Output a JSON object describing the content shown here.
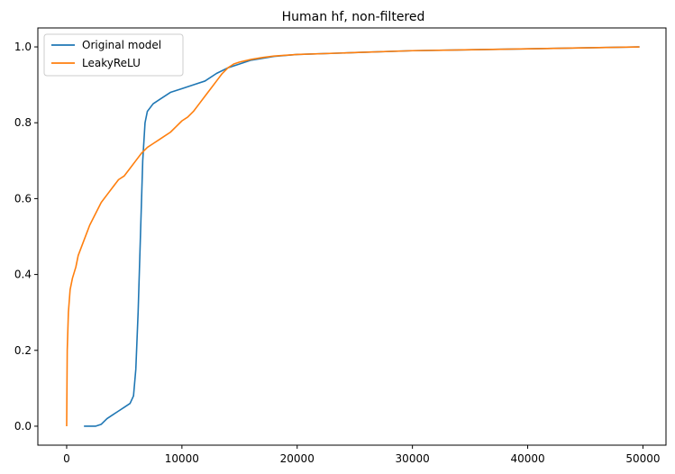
{
  "chart_data": {
    "type": "line",
    "title": "Human hf, non-filtered",
    "xlabel": "",
    "ylabel": "",
    "xlim": [
      -2500,
      52000
    ],
    "ylim": [
      -0.05,
      1.05
    ],
    "xticks": [
      0,
      10000,
      20000,
      30000,
      40000,
      50000
    ],
    "xtick_labels": [
      "0",
      "10000",
      "20000",
      "30000",
      "40000",
      "50000"
    ],
    "yticks": [
      0.0,
      0.2,
      0.4,
      0.6,
      0.8,
      1.0
    ],
    "ytick_labels": [
      "0.0",
      "0.2",
      "0.4",
      "0.6",
      "0.8",
      "1.0"
    ],
    "grid": false,
    "legend_position": "top-left",
    "series": [
      {
        "name": "Original model",
        "color": "#1f77b4",
        "points": [
          [
            1500,
            0.0
          ],
          [
            2500,
            0.0
          ],
          [
            3000,
            0.005
          ],
          [
            3500,
            0.02
          ],
          [
            4000,
            0.03
          ],
          [
            4500,
            0.04
          ],
          [
            5000,
            0.05
          ],
          [
            5500,
            0.06
          ],
          [
            5800,
            0.08
          ],
          [
            6000,
            0.15
          ],
          [
            6200,
            0.3
          ],
          [
            6400,
            0.5
          ],
          [
            6600,
            0.7
          ],
          [
            6800,
            0.8
          ],
          [
            7000,
            0.83
          ],
          [
            7500,
            0.85
          ],
          [
            8000,
            0.86
          ],
          [
            9000,
            0.88
          ],
          [
            10000,
            0.89
          ],
          [
            11000,
            0.9
          ],
          [
            12000,
            0.91
          ],
          [
            13000,
            0.93
          ],
          [
            14000,
            0.945
          ],
          [
            15000,
            0.955
          ],
          [
            16000,
            0.965
          ],
          [
            17000,
            0.97
          ],
          [
            18000,
            0.975
          ],
          [
            20000,
            0.98
          ],
          [
            25000,
            0.985
          ],
          [
            30000,
            0.99
          ],
          [
            40000,
            0.995
          ],
          [
            49700,
            1.0
          ]
        ]
      },
      {
        "name": "LeakyReLU",
        "color": "#ff7f0e",
        "points": [
          [
            0,
            0.0
          ],
          [
            50,
            0.2
          ],
          [
            150,
            0.3
          ],
          [
            300,
            0.36
          ],
          [
            500,
            0.39
          ],
          [
            800,
            0.42
          ],
          [
            1000,
            0.45
          ],
          [
            1500,
            0.49
          ],
          [
            2000,
            0.53
          ],
          [
            2500,
            0.56
          ],
          [
            3000,
            0.59
          ],
          [
            3500,
            0.61
          ],
          [
            4000,
            0.63
          ],
          [
            4500,
            0.65
          ],
          [
            5000,
            0.66
          ],
          [
            5500,
            0.68
          ],
          [
            6000,
            0.7
          ],
          [
            6500,
            0.72
          ],
          [
            7000,
            0.735
          ],
          [
            7500,
            0.745
          ],
          [
            8000,
            0.755
          ],
          [
            8500,
            0.765
          ],
          [
            9000,
            0.775
          ],
          [
            9500,
            0.79
          ],
          [
            10000,
            0.805
          ],
          [
            10500,
            0.815
          ],
          [
            11000,
            0.83
          ],
          [
            11500,
            0.85
          ],
          [
            12000,
            0.87
          ],
          [
            12500,
            0.89
          ],
          [
            13000,
            0.91
          ],
          [
            13500,
            0.93
          ],
          [
            14000,
            0.945
          ],
          [
            14500,
            0.955
          ],
          [
            15000,
            0.96
          ],
          [
            16000,
            0.967
          ],
          [
            17000,
            0.972
          ],
          [
            18000,
            0.976
          ],
          [
            20000,
            0.98
          ],
          [
            25000,
            0.985
          ],
          [
            30000,
            0.99
          ],
          [
            40000,
            0.995
          ],
          [
            49700,
            1.0
          ]
        ]
      }
    ]
  }
}
